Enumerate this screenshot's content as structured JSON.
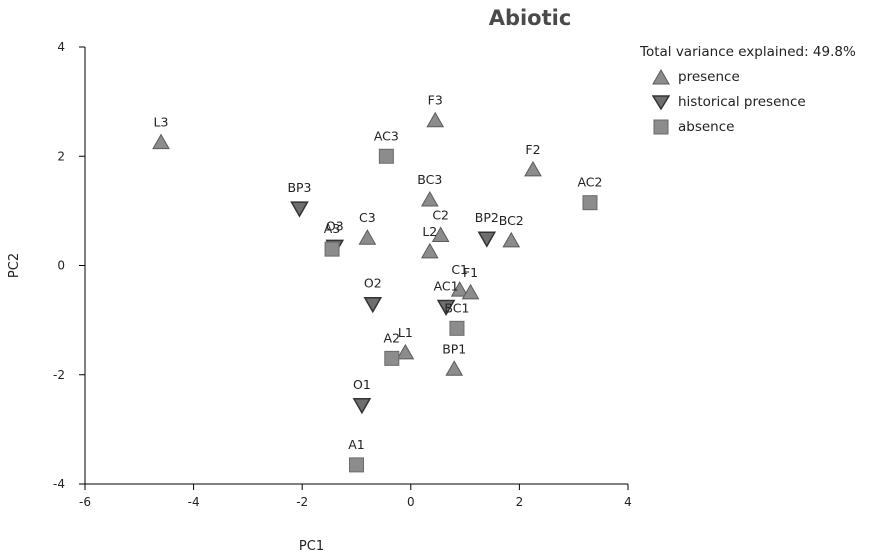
{
  "chart_data": {
    "type": "scatter",
    "title": "Abiotic",
    "xlabel": "PC1",
    "ylabel": "PC2",
    "xlim": [
      -6,
      4
    ],
    "ylim": [
      -4,
      4
    ],
    "xticks": [
      -6,
      -4,
      -2,
      0,
      2,
      4
    ],
    "yticks": [
      -4,
      -2,
      0,
      2,
      4
    ],
    "annotation": "Total variance explained: 49.8%",
    "grid": false,
    "legend_position": "top-right",
    "series": [
      {
        "name": "presence",
        "marker": "triangle-up",
        "color": "#8c8c8c",
        "points": [
          {
            "label": "L3",
            "x": -4.6,
            "y": 2.25
          },
          {
            "label": "F3",
            "x": 0.45,
            "y": 2.65
          },
          {
            "label": "F2",
            "x": 2.25,
            "y": 1.75
          },
          {
            "label": "BC3",
            "x": 0.35,
            "y": 1.2
          },
          {
            "label": "C3",
            "x": -0.8,
            "y": 0.5
          },
          {
            "label": "C2",
            "x": 0.55,
            "y": 0.55
          },
          {
            "label": "L2",
            "x": 0.35,
            "y": 0.25
          },
          {
            "label": "BC2",
            "x": 1.85,
            "y": 0.45
          },
          {
            "label": "C1",
            "x": 0.9,
            "y": -0.45
          },
          {
            "label": "F1",
            "x": 1.1,
            "y": -0.5
          },
          {
            "label": "L1",
            "x": -0.1,
            "y": -1.6
          },
          {
            "label": "BP1",
            "x": 0.8,
            "y": -1.9
          }
        ]
      },
      {
        "name": "historical presence",
        "marker": "triangle-down",
        "color": "#6e6e6e",
        "points": [
          {
            "label": "BP3",
            "x": -2.05,
            "y": 1.05
          },
          {
            "label": "O3",
            "x": -1.4,
            "y": 0.35
          },
          {
            "label": "BP2",
            "x": 1.4,
            "y": 0.5
          },
          {
            "label": "O2",
            "x": -0.7,
            "y": -0.7
          },
          {
            "label": "AC1",
            "x": 0.65,
            "y": -0.75
          },
          {
            "label": "O1",
            "x": -0.9,
            "y": -2.55
          }
        ]
      },
      {
        "name": "absence",
        "marker": "square",
        "color": "#8c8c8c",
        "points": [
          {
            "label": "AC3",
            "x": -0.45,
            "y": 2.0
          },
          {
            "label": "AC2",
            "x": 3.3,
            "y": 1.15
          },
          {
            "label": "A3",
            "x": -1.45,
            "y": 0.3
          },
          {
            "label": "BC1",
            "x": 0.85,
            "y": -1.15
          },
          {
            "label": "A2",
            "x": -0.35,
            "y": -1.7
          },
          {
            "label": "A1",
            "x": -1.0,
            "y": -3.65
          }
        ]
      }
    ]
  }
}
